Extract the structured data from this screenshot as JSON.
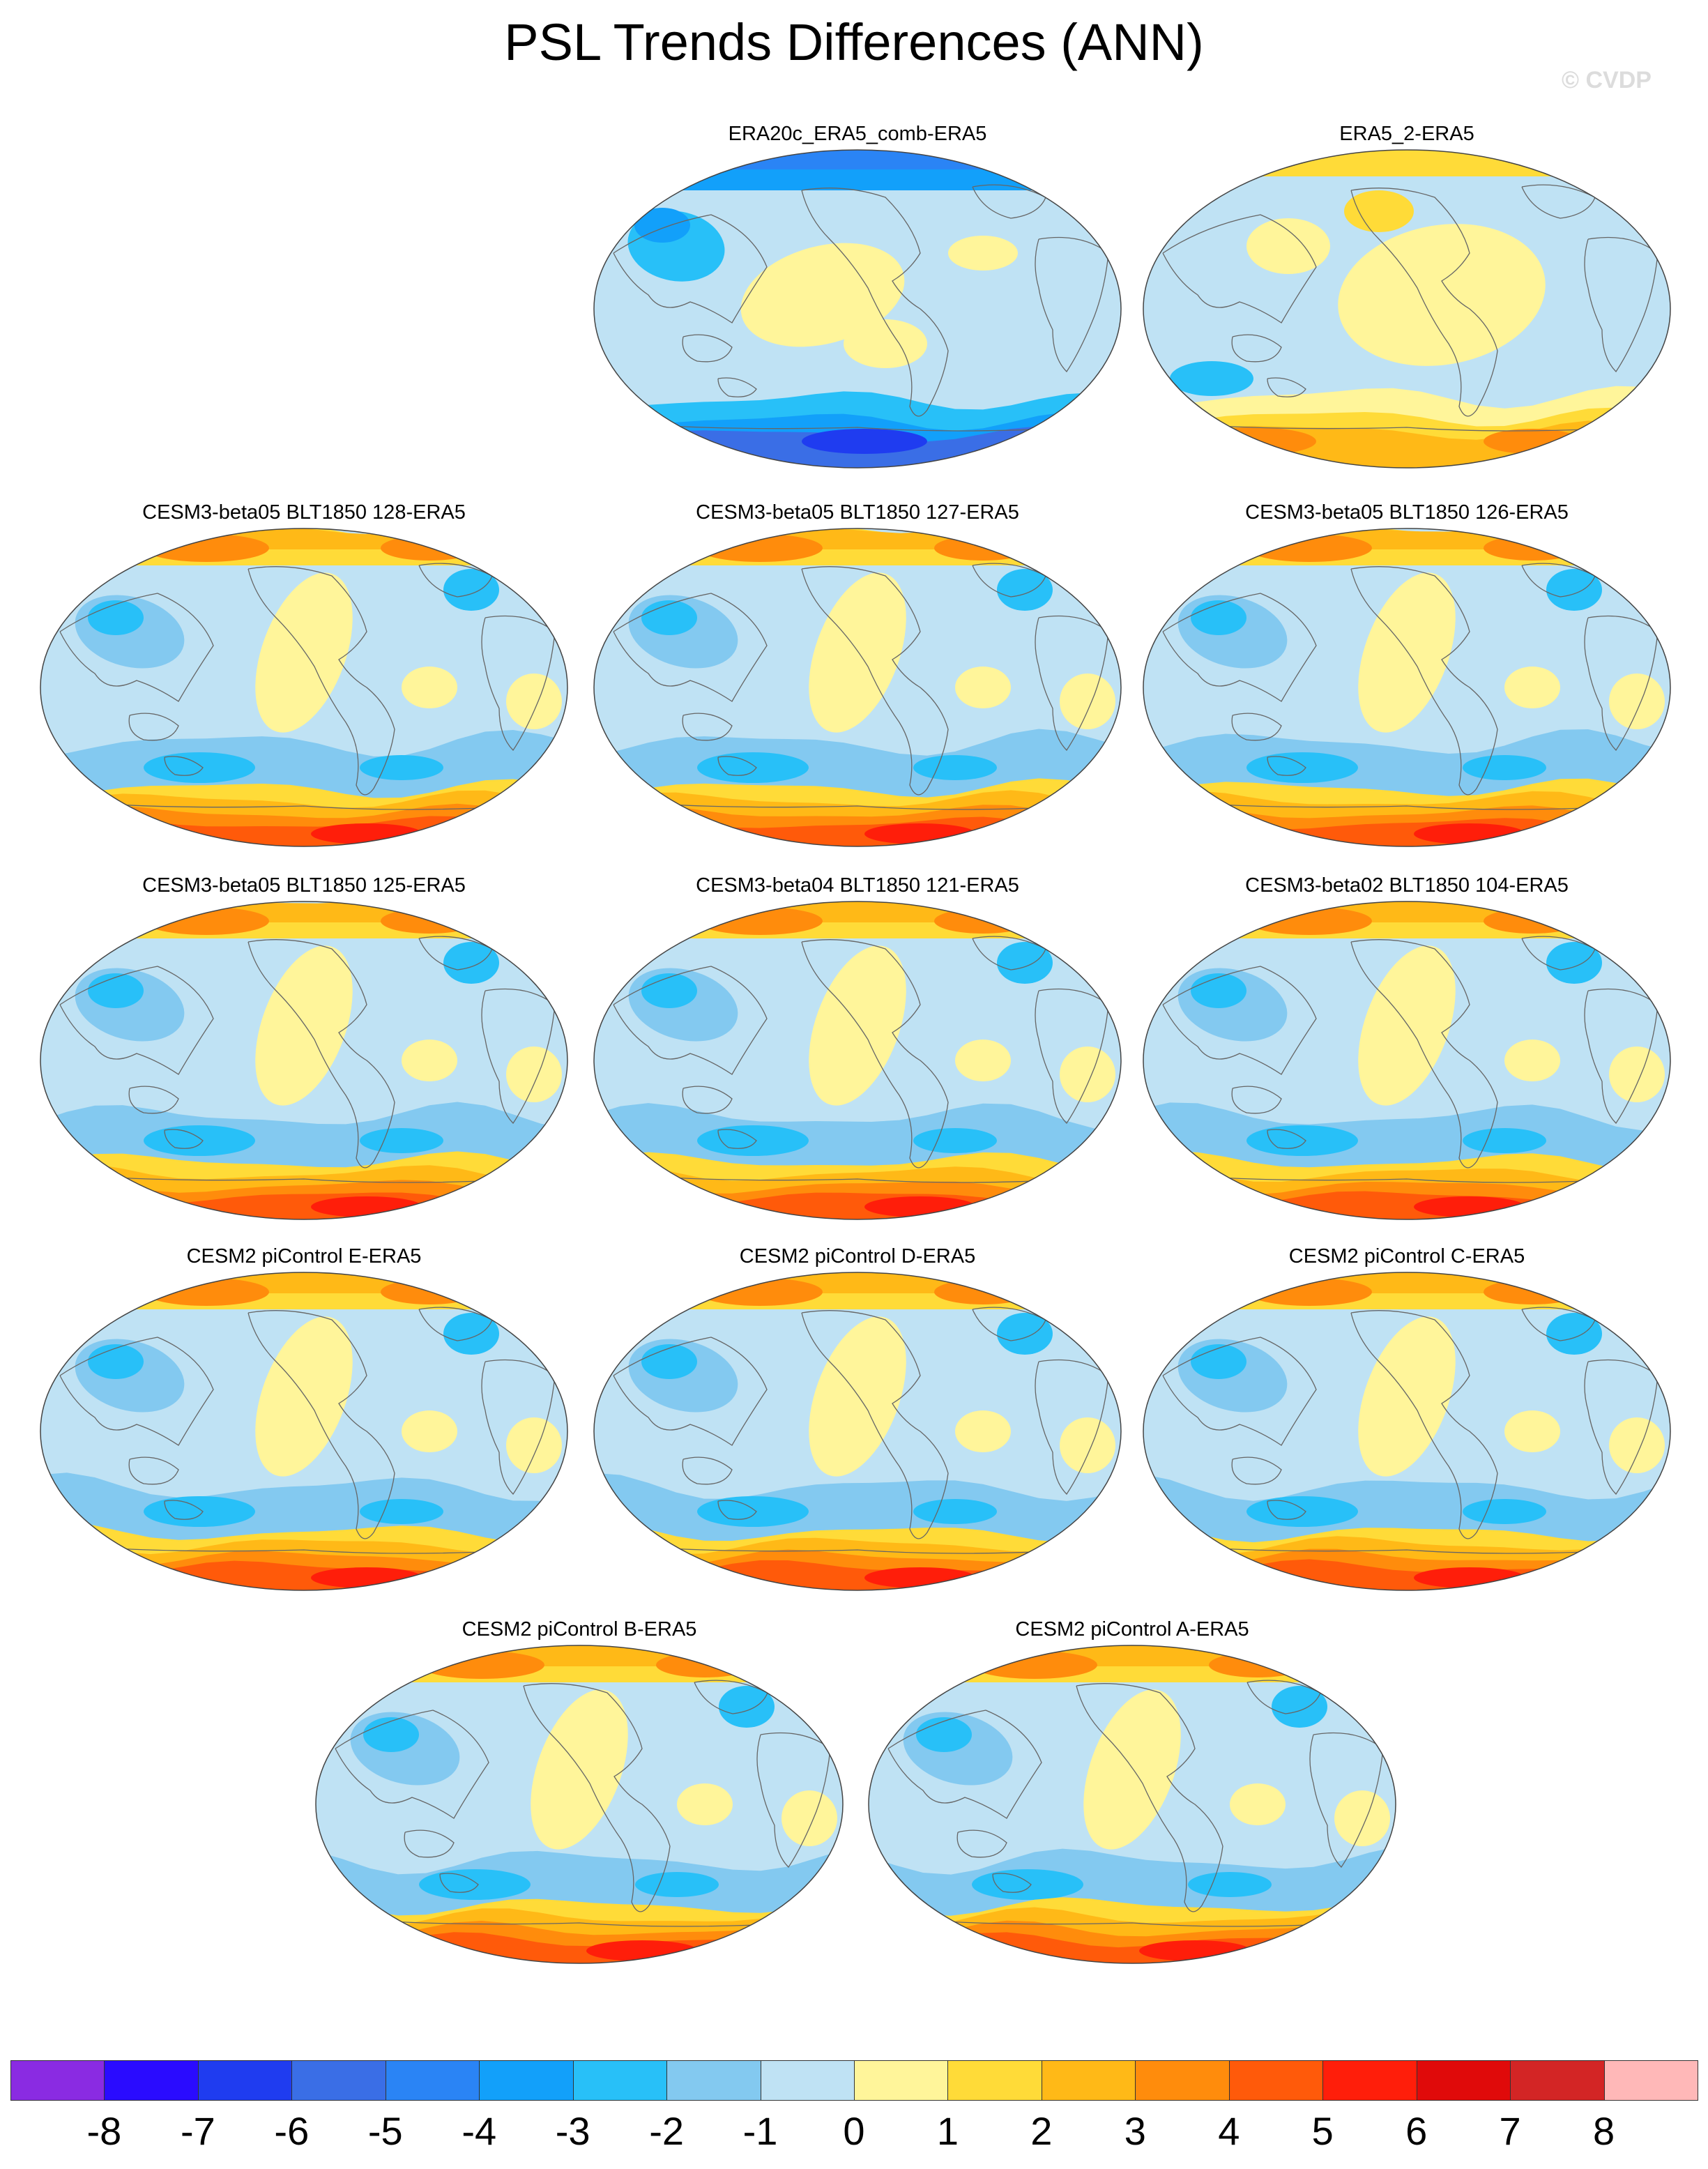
{
  "title": "PSL Trends Differences (ANN)",
  "watermark": "© CVDP",
  "colorbar": {
    "colors": [
      "#8a2be2",
      "#2a0bff",
      "#1f3cf0",
      "#3a6ee6",
      "#2a84f5",
      "#12a0fa",
      "#28c0f8",
      "#83c9f0",
      "#bfe2f4",
      "#fff59a",
      "#ffdb38",
      "#ffb917",
      "#ff8c0c",
      "#ff5a0a",
      "#ff1e0a",
      "#e00a0a",
      "#d32525",
      "#ffb8b8"
    ],
    "labels": [
      "-8",
      "-7",
      "-6",
      "-5",
      "-4",
      "-3",
      "-2",
      "-1",
      "0",
      "1",
      "2",
      "3",
      "4",
      "5",
      "6",
      "7",
      "8"
    ]
  },
  "panels": [
    {
      "title": "ERA20c_ERA5_comb-ERA5",
      "pattern": "blue"
    },
    {
      "title": "ERA5_2-ERA5",
      "pattern": "warmlight"
    },
    {
      "title": "CESM3-beta05 BLT1850 128-ERA5",
      "pattern": "model"
    },
    {
      "title": "CESM3-beta05 BLT1850 127-ERA5",
      "pattern": "model"
    },
    {
      "title": "CESM3-beta05 BLT1850 126-ERA5",
      "pattern": "model"
    },
    {
      "title": "CESM3-beta05 BLT1850 125-ERA5",
      "pattern": "model"
    },
    {
      "title": "CESM3-beta04 BLT1850 121-ERA5",
      "pattern": "model"
    },
    {
      "title": "CESM3-beta02 BLT1850 104-ERA5",
      "pattern": "model"
    },
    {
      "title": "CESM2 piControl E-ERA5",
      "pattern": "model"
    },
    {
      "title": "CESM2 piControl D-ERA5",
      "pattern": "model"
    },
    {
      "title": "CESM2 piControl C-ERA5",
      "pattern": "model"
    },
    {
      "title": "CESM2 piControl B-ERA5",
      "pattern": "model"
    },
    {
      "title": "CESM2 piControl A-ERA5",
      "pattern": "model"
    }
  ]
}
